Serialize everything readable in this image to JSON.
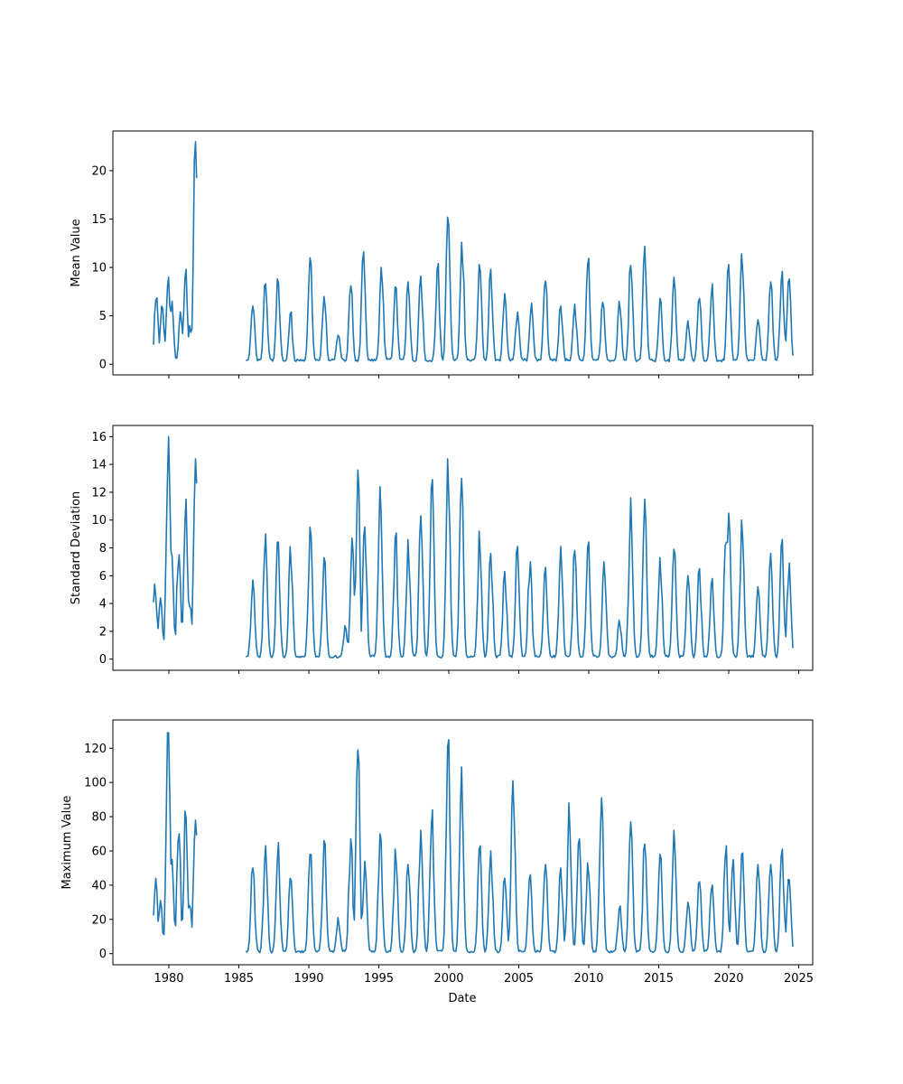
{
  "chart_data": {
    "type": "line",
    "xlabel": "Date",
    "xlim": [
      1976.0,
      2026.0
    ],
    "xticks": [
      1980,
      1985,
      1990,
      1995,
      2000,
      2005,
      2010,
      2015,
      2020,
      2025
    ],
    "line_color": "#1f77b4",
    "grid": false,
    "sampling": "monthly",
    "gap": [
      1982.0,
      1985.5
    ],
    "segments": [
      {
        "start": 1978.9,
        "end": 1981.95
      },
      {
        "start": 1985.5,
        "end": 2024.6
      }
    ],
    "panels": [
      {
        "name": "mean",
        "ylabel": "Mean Value",
        "ylim": [
          -1.1,
          24.1
        ],
        "yticks": [
          0,
          5,
          10,
          15,
          20
        ],
        "y_range": [
          0.3,
          23.0
        ],
        "peaks": [
          [
            1979.1,
            6.6
          ],
          [
            1979.5,
            6.0
          ],
          [
            1979.95,
            9.0
          ],
          [
            1980.2,
            6.5
          ],
          [
            1980.85,
            5.4
          ],
          [
            1981.2,
            9.8
          ],
          [
            1981.5,
            4.0
          ],
          [
            1981.9,
            23.0
          ],
          [
            1986.0,
            6.0
          ],
          [
            1986.9,
            8.3
          ],
          [
            1987.8,
            8.4
          ],
          [
            1988.7,
            5.2
          ],
          [
            1990.1,
            11.0
          ],
          [
            1991.1,
            7.0
          ],
          [
            1992.1,
            3.0
          ],
          [
            1993.0,
            8.1
          ],
          [
            1993.9,
            11.6
          ],
          [
            1995.2,
            10.0
          ],
          [
            1996.2,
            8.0
          ],
          [
            1997.1,
            8.5
          ],
          [
            1998.0,
            9.1
          ],
          [
            1999.2,
            9.8
          ],
          [
            1999.95,
            15.2
          ],
          [
            2000.95,
            12.6
          ],
          [
            2002.2,
            10.3
          ],
          [
            2003.0,
            9.8
          ],
          [
            2004.0,
            7.3
          ],
          [
            2004.9,
            5.4
          ],
          [
            2005.9,
            6.3
          ],
          [
            2006.9,
            8.6
          ],
          [
            2008.0,
            6.0
          ],
          [
            2009.0,
            6.2
          ],
          [
            2009.95,
            10.3
          ],
          [
            2011.0,
            6.4
          ],
          [
            2012.2,
            6.5
          ],
          [
            2013.0,
            10.2
          ],
          [
            2014.0,
            12.2
          ],
          [
            2015.1,
            6.8
          ],
          [
            2016.1,
            9.0
          ],
          [
            2017.1,
            4.5
          ],
          [
            2017.9,
            6.8
          ],
          [
            2018.8,
            8.3
          ],
          [
            2020.0,
            10.3
          ],
          [
            2020.95,
            11.4
          ],
          [
            2022.1,
            4.6
          ],
          [
            2023.0,
            8.5
          ],
          [
            2023.8,
            9.6
          ],
          [
            2024.3,
            8.8
          ]
        ]
      },
      {
        "name": "std",
        "ylabel": "Standard Deviation",
        "ylim": [
          -0.8,
          16.8
        ],
        "yticks": [
          0,
          2,
          4,
          6,
          8,
          10,
          12,
          14,
          16
        ],
        "y_range": [
          0.1,
          16.0
        ],
        "peaks": [
          [
            1979.0,
            5.4
          ],
          [
            1979.4,
            4.4
          ],
          [
            1979.95,
            16.0
          ],
          [
            1980.2,
            7.4
          ],
          [
            1980.7,
            7.5
          ],
          [
            1981.2,
            11.5
          ],
          [
            1981.5,
            3.8
          ],
          [
            1981.9,
            14.4
          ],
          [
            1986.0,
            5.7
          ],
          [
            1986.9,
            9.0
          ],
          [
            1987.8,
            8.4
          ],
          [
            1988.7,
            8.1
          ],
          [
            1990.1,
            9.5
          ],
          [
            1991.1,
            7.3
          ],
          [
            1992.6,
            2.4
          ],
          [
            1993.1,
            8.7
          ],
          [
            1993.5,
            13.6
          ],
          [
            1994.0,
            9.5
          ],
          [
            1995.1,
            12.4
          ],
          [
            1996.2,
            8.7
          ],
          [
            1997.1,
            8.6
          ],
          [
            1998.0,
            10.3
          ],
          [
            1998.8,
            12.9
          ],
          [
            1999.95,
            14.4
          ],
          [
            2000.9,
            13.0
          ],
          [
            2002.2,
            9.2
          ],
          [
            2003.0,
            7.6
          ],
          [
            2004.0,
            6.3
          ],
          [
            2004.9,
            8.1
          ],
          [
            2005.8,
            7.0
          ],
          [
            2006.9,
            6.6
          ],
          [
            2008.0,
            8.1
          ],
          [
            2009.0,
            7.8
          ],
          [
            2009.95,
            8.0
          ],
          [
            2011.1,
            7.0
          ],
          [
            2012.2,
            2.8
          ],
          [
            2013.0,
            11.6
          ],
          [
            2014.0,
            11.5
          ],
          [
            2015.1,
            7.3
          ],
          [
            2016.1,
            7.9
          ],
          [
            2017.1,
            6.0
          ],
          [
            2017.9,
            6.5
          ],
          [
            2018.8,
            5.8
          ],
          [
            2019.8,
            8.4
          ],
          [
            2020.0,
            10.5
          ],
          [
            2020.95,
            10.0
          ],
          [
            2022.1,
            5.2
          ],
          [
            2023.0,
            7.6
          ],
          [
            2023.8,
            8.6
          ],
          [
            2024.3,
            6.9
          ]
        ]
      },
      {
        "name": "max",
        "ylabel": "Maximum Value",
        "ylim": [
          -6.5,
          136.5
        ],
        "yticks": [
          0,
          20,
          40,
          60,
          80,
          100,
          120
        ],
        "y_range": [
          0.5,
          129.0
        ],
        "peaks": [
          [
            1979.05,
            44.0
          ],
          [
            1979.4,
            31.0
          ],
          [
            1979.95,
            129.0
          ],
          [
            1980.2,
            55.0
          ],
          [
            1980.7,
            70.0
          ],
          [
            1981.2,
            79.0
          ],
          [
            1981.5,
            28.0
          ],
          [
            1981.9,
            78.0
          ],
          [
            1986.0,
            50.0
          ],
          [
            1986.9,
            63.0
          ],
          [
            1987.8,
            65.0
          ],
          [
            1988.7,
            44.0
          ],
          [
            1990.1,
            58.0
          ],
          [
            1991.1,
            66.0
          ],
          [
            1992.1,
            21.0
          ],
          [
            1993.0,
            67.0
          ],
          [
            1993.5,
            119.0
          ],
          [
            1994.0,
            54.0
          ],
          [
            1995.1,
            70.0
          ],
          [
            1996.2,
            61.0
          ],
          [
            1997.1,
            52.0
          ],
          [
            1998.0,
            72.0
          ],
          [
            1998.8,
            84.0
          ],
          [
            1999.95,
            121.0
          ],
          [
            2000.9,
            109.0
          ],
          [
            2002.2,
            61.0
          ],
          [
            2003.0,
            60.0
          ],
          [
            2004.0,
            44.0
          ],
          [
            2004.6,
            101.0
          ],
          [
            2005.8,
            46.0
          ],
          [
            2006.9,
            52.0
          ],
          [
            2008.0,
            50.0
          ],
          [
            2008.6,
            88.0
          ],
          [
            2009.3,
            67.0
          ],
          [
            2009.95,
            53.0
          ],
          [
            2010.9,
            91.0
          ],
          [
            2012.2,
            26.0
          ],
          [
            2013.0,
            77.0
          ],
          [
            2014.0,
            64.0
          ],
          [
            2015.1,
            58.0
          ],
          [
            2016.1,
            72.0
          ],
          [
            2017.1,
            30.0
          ],
          [
            2017.9,
            42.0
          ],
          [
            2018.8,
            40.0
          ],
          [
            2019.8,
            63.0
          ],
          [
            2020.3,
            55.0
          ],
          [
            2020.95,
            58.0
          ],
          [
            2022.1,
            52.0
          ],
          [
            2023.0,
            52.0
          ],
          [
            2023.8,
            61.0
          ],
          [
            2024.3,
            43.0
          ]
        ]
      }
    ]
  }
}
